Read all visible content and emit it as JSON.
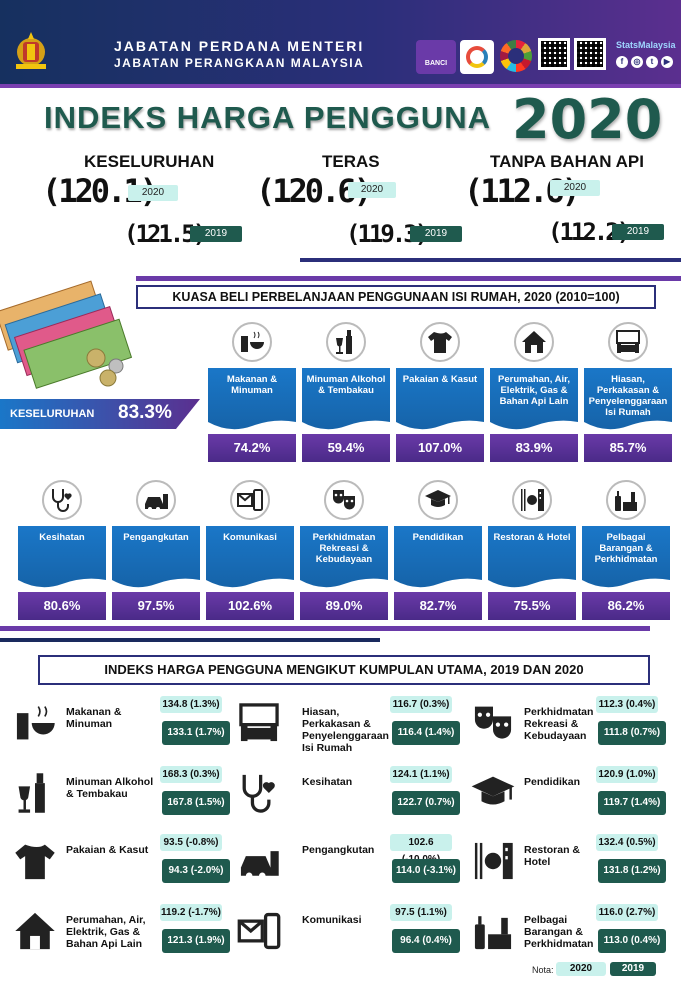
{
  "header": {
    "dept_line1": "JABATAN PERDANA MENTERI",
    "dept_line2": "JABATAN PERANGKAAN MALAYSIA",
    "logo1": "BANCI",
    "stats_label": "StatsMalaysia"
  },
  "title": "INDEKS HARGA PENGGUNA",
  "year": "2020",
  "headline": [
    {
      "label": "KESELURUHAN",
      "v2020": "(120.1)",
      "v2019": "(121.5)"
    },
    {
      "label": "TERAS",
      "v2020": "(120.6)",
      "v2019": "(119.3)"
    },
    {
      "label": "TANPA BAHAN API",
      "v2020": "(112.6)",
      "v2019": "(112.2)"
    }
  ],
  "pill_2020": "2020",
  "pill_2019": "2019",
  "purchasing": {
    "title": "KUASA BELI PERBELANJAAN PENGGUNAAN ISI RUMAH, 2020 (2010=100)",
    "overall_label": "KESELURUHAN",
    "overall_value": "83.3%",
    "row1": [
      {
        "label": "Makanan & Minuman",
        "value": "74.2%",
        "icon": "food-icon"
      },
      {
        "label": "Minuman Alkohol & Tembakau",
        "value": "59.4%",
        "icon": "bottle-icon"
      },
      {
        "label": "Pakaian & Kasut",
        "value": "107.0%",
        "icon": "shirt-icon"
      },
      {
        "label": "Perumahan, Air, Elektrik, Gas & Bahan Api Lain",
        "value": "83.9%",
        "icon": "house-icon"
      },
      {
        "label": "Hiasan, Perkakasan & Penyelenggaraan Isi Rumah",
        "value": "85.7%",
        "icon": "furniture-icon"
      }
    ],
    "row2": [
      {
        "label": "Kesihatan",
        "value": "80.6%",
        "icon": "stethoscope-icon"
      },
      {
        "label": "Pengangkutan",
        "value": "97.5%",
        "icon": "car-icon"
      },
      {
        "label": "Komunikasi",
        "value": "102.6%",
        "icon": "phone-icon"
      },
      {
        "label": "Perkhidmatan Rekreasi & Kebudayaan",
        "value": "89.0%",
        "icon": "masks-icon"
      },
      {
        "label": "Pendidikan",
        "value": "82.7%",
        "icon": "graduation-cap-icon"
      },
      {
        "label": "Restoran & Hotel",
        "value": "75.5%",
        "icon": "restaurant-icon"
      },
      {
        "label": "Pelbagai Barangan & Perkhidmatan",
        "value": "86.2%",
        "icon": "misc-goods-icon"
      }
    ]
  },
  "groups": {
    "title": "INDEKS HARGA PENGGUNA MENGIKUT KUMPULAN UTAMA, 2019 DAN 2020",
    "col1": [
      {
        "label": "Makanan & Minuman",
        "v2020": "134.8 (1.3%)",
        "v2019": "133.1 (1.7%)",
        "icon": "food-icon"
      },
      {
        "label": "Minuman Alkohol & Tembakau",
        "v2020": "168.3 (0.3%)",
        "v2019": "167.8 (1.5%)",
        "icon": "bottle-icon"
      },
      {
        "label": "Pakaian & Kasut",
        "v2020": "93.5 (-0.8%)",
        "v2019": "94.3 (-2.0%)",
        "icon": "shirt-icon"
      },
      {
        "label": "Perumahan, Air, Elektrik, Gas & Bahan Api Lain",
        "v2020": "119.2 (-1.7%)",
        "v2019": "121.3 (1.9%)",
        "icon": "house-icon"
      }
    ],
    "col2": [
      {
        "label": "Hiasan, Perkakasan & Penyelenggaraan Isi Rumah",
        "v2020": "116.7 (0.3%)",
        "v2019": "116.4 (1.4%)",
        "icon": "furniture-icon"
      },
      {
        "label": "Kesihatan",
        "v2020": "124.1 (1.1%)",
        "v2019": "122.7 (0.7%)",
        "icon": "stethoscope-icon"
      },
      {
        "label": "Pengangkutan",
        "v2020": "102.6 (-10.0%)",
        "v2019": "114.0 (-3.1%)",
        "icon": "car-icon"
      },
      {
        "label": "Komunikasi",
        "v2020": "97.5 (1.1%)",
        "v2019": "96.4 (0.4%)",
        "icon": "phone-icon"
      }
    ],
    "col3": [
      {
        "label": "Perkhidmatan Rekreasi & Kebudayaan",
        "v2020": "112.3 (0.4%)",
        "v2019": "111.8 (0.7%)",
        "icon": "masks-icon"
      },
      {
        "label": "Pendidikan",
        "v2020": "120.9 (1.0%)",
        "v2019": "119.7 (1.4%)",
        "icon": "graduation-cap-icon"
      },
      {
        "label": "Restoran & Hotel",
        "v2020": "132.4 (0.5%)",
        "v2019": "131.8 (1.2%)",
        "icon": "restaurant-icon"
      },
      {
        "label": "Pelbagai Barangan & Perkhidmatan",
        "v2020": "116.0 (2.7%)",
        "v2019": "113.0 (0.4%)",
        "icon": "misc-goods-icon"
      }
    ]
  },
  "nota": {
    "label": "Nota:",
    "y2020": "2020",
    "y2019": "2019"
  },
  "colors": {
    "navy": "#2b2f7a",
    "teal_dark": "#1f5a4e",
    "teal_light": "#c9f1ec",
    "blue": "#1a77c8",
    "purple": "#6a3aa8"
  }
}
